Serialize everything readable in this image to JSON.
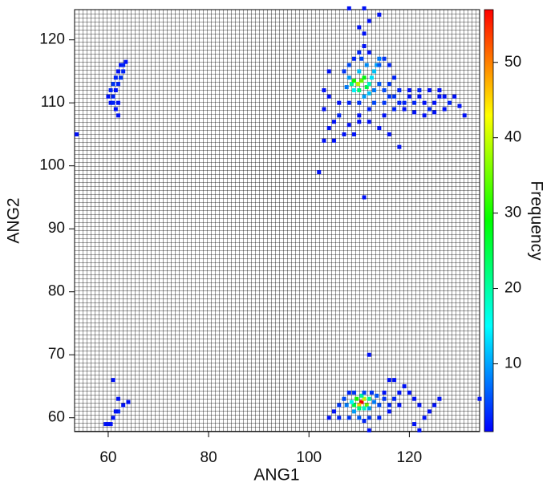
{
  "chart_data": {
    "type": "hist2d",
    "xlabel": "ANG1",
    "ylabel": "ANG2",
    "xlim": [
      53.3,
      134
    ],
    "ylim": [
      57.8,
      124.8
    ],
    "xticks": [
      60,
      80,
      100,
      120
    ],
    "yticks": [
      60,
      70,
      80,
      90,
      100,
      110,
      120
    ],
    "grid": true,
    "colorbar": {
      "label": "Frequency",
      "lim": [
        1,
        57
      ],
      "ticks": [
        10,
        20,
        30,
        40,
        50
      ]
    },
    "x": [
      60.5,
      61,
      61.5,
      62,
      62.5,
      63,
      63.5,
      62,
      62.5,
      63,
      61,
      61.5,
      60.5,
      62,
      61.5,
      62,
      61,
      60,
      53.7,
      108.5,
      109,
      109.8,
      110.5,
      111,
      111.5,
      110,
      109,
      108,
      107.5,
      112,
      112.5,
      113,
      113.5,
      114,
      112,
      111,
      113,
      114,
      115,
      116,
      117,
      118,
      119,
      120,
      121,
      122,
      123,
      124,
      125,
      126,
      127,
      128,
      129,
      130,
      131,
      119,
      121,
      123,
      125,
      117,
      115,
      113,
      110,
      108,
      106,
      104,
      103,
      106,
      105,
      104,
      103,
      105,
      107,
      109,
      108,
      110,
      112,
      114,
      115,
      116,
      118,
      102,
      111,
      110,
      111,
      112,
      111,
      110,
      112,
      108,
      111,
      114,
      114,
      115,
      116,
      107,
      108,
      109,
      110,
      111.5,
      110.5,
      112,
      116,
      117,
      118,
      120,
      122,
      126,
      127,
      124,
      104,
      103,
      110,
      110.5,
      110,
      111,
      109.5,
      111.5,
      109,
      112,
      108.5,
      110,
      111,
      110.5,
      109,
      112,
      113,
      113.5,
      114,
      115,
      116,
      117,
      107.5,
      107,
      106,
      105,
      104,
      106,
      108,
      110,
      111,
      112,
      114,
      116,
      118,
      118,
      119,
      120,
      121,
      122,
      123,
      122,
      121,
      124,
      125,
      126,
      134,
      112,
      112,
      116,
      117,
      109,
      111,
      112.5,
      108,
      115,
      61,
      62,
      62,
      61.5,
      63,
      64,
      59.5,
      60,
      60.5,
      61
    ],
    "y": [
      112,
      113,
      114,
      115,
      116,
      116,
      116.5,
      113,
      114,
      115,
      111,
      112,
      110,
      110,
      109,
      108,
      110,
      111,
      105,
      113,
      113.5,
      113,
      113.5,
      114,
      112.5,
      112,
      112,
      114,
      112.5,
      113,
      114,
      115,
      116,
      117,
      111.5,
      111,
      112,
      113,
      112,
      111,
      111,
      110,
      110,
      111,
      110,
      111,
      110,
      109,
      110,
      111,
      109,
      110,
      111,
      109.5,
      108,
      109,
      108.5,
      108,
      108.5,
      109,
      110,
      110,
      110,
      110,
      110,
      111,
      112,
      108,
      107,
      106,
      104,
      104,
      105,
      105,
      106.5,
      108,
      107,
      106,
      108,
      105,
      103,
      99,
      95,
      118,
      119,
      118,
      121,
      122,
      123,
      125,
      125,
      124,
      116,
      117,
      116,
      115,
      116,
      117,
      115,
      116,
      117,
      109,
      113,
      114,
      112,
      112,
      112,
      112,
      111,
      112,
      115,
      109,
      107,
      62.5,
      62,
      63,
      63,
      62,
      62,
      63,
      62.5,
      61.5,
      61.5,
      63.5,
      61,
      61.5,
      62.5,
      63.5,
      62,
      63,
      62,
      63,
      62,
      63,
      62,
      61,
      60,
      60,
      60,
      60,
      59.5,
      60,
      60,
      61,
      62,
      64,
      65,
      64,
      63,
      62,
      60,
      58,
      59,
      61,
      62,
      63,
      63,
      58,
      70,
      66,
      66,
      64,
      64,
      64,
      64,
      64,
      66,
      63,
      61,
      61,
      62,
      62.5,
      59,
      59,
      59,
      60
    ],
    "values": [
      3,
      4,
      3,
      2,
      2,
      3,
      2,
      3,
      4,
      3,
      3,
      2,
      2,
      2,
      2,
      2,
      3,
      2,
      2,
      20,
      30,
      40,
      35,
      28,
      25,
      22,
      15,
      10,
      8,
      18,
      14,
      12,
      10,
      8,
      12,
      10,
      8,
      6,
      5,
      4,
      4,
      3,
      3,
      2,
      3,
      2,
      2,
      3,
      2,
      2,
      2,
      3,
      2,
      2,
      2,
      2,
      2,
      2,
      2,
      3,
      4,
      5,
      4,
      3,
      2,
      2,
      2,
      3,
      2,
      2,
      2,
      2,
      2,
      2,
      2,
      2,
      2,
      2,
      2,
      2,
      2,
      2,
      2,
      3,
      2,
      2,
      2,
      2,
      2,
      2,
      2,
      2,
      6,
      4,
      3,
      4,
      5,
      3,
      12,
      9,
      5,
      3,
      4,
      3,
      3,
      2,
      3,
      2,
      2,
      2,
      2,
      2,
      2,
      57,
      45,
      40,
      30,
      35,
      25,
      20,
      15,
      22,
      18,
      20,
      10,
      10,
      8,
      6,
      5,
      4,
      3,
      3,
      8,
      5,
      4,
      2,
      2,
      3,
      4,
      6,
      3,
      4,
      3,
      2,
      2,
      2,
      2,
      2,
      2,
      2,
      2,
      2,
      2,
      2,
      2,
      2,
      2,
      2,
      2,
      2,
      2,
      4,
      5,
      4,
      3,
      2,
      2,
      2,
      3,
      2,
      2,
      2,
      2,
      2,
      2,
      2
    ]
  }
}
